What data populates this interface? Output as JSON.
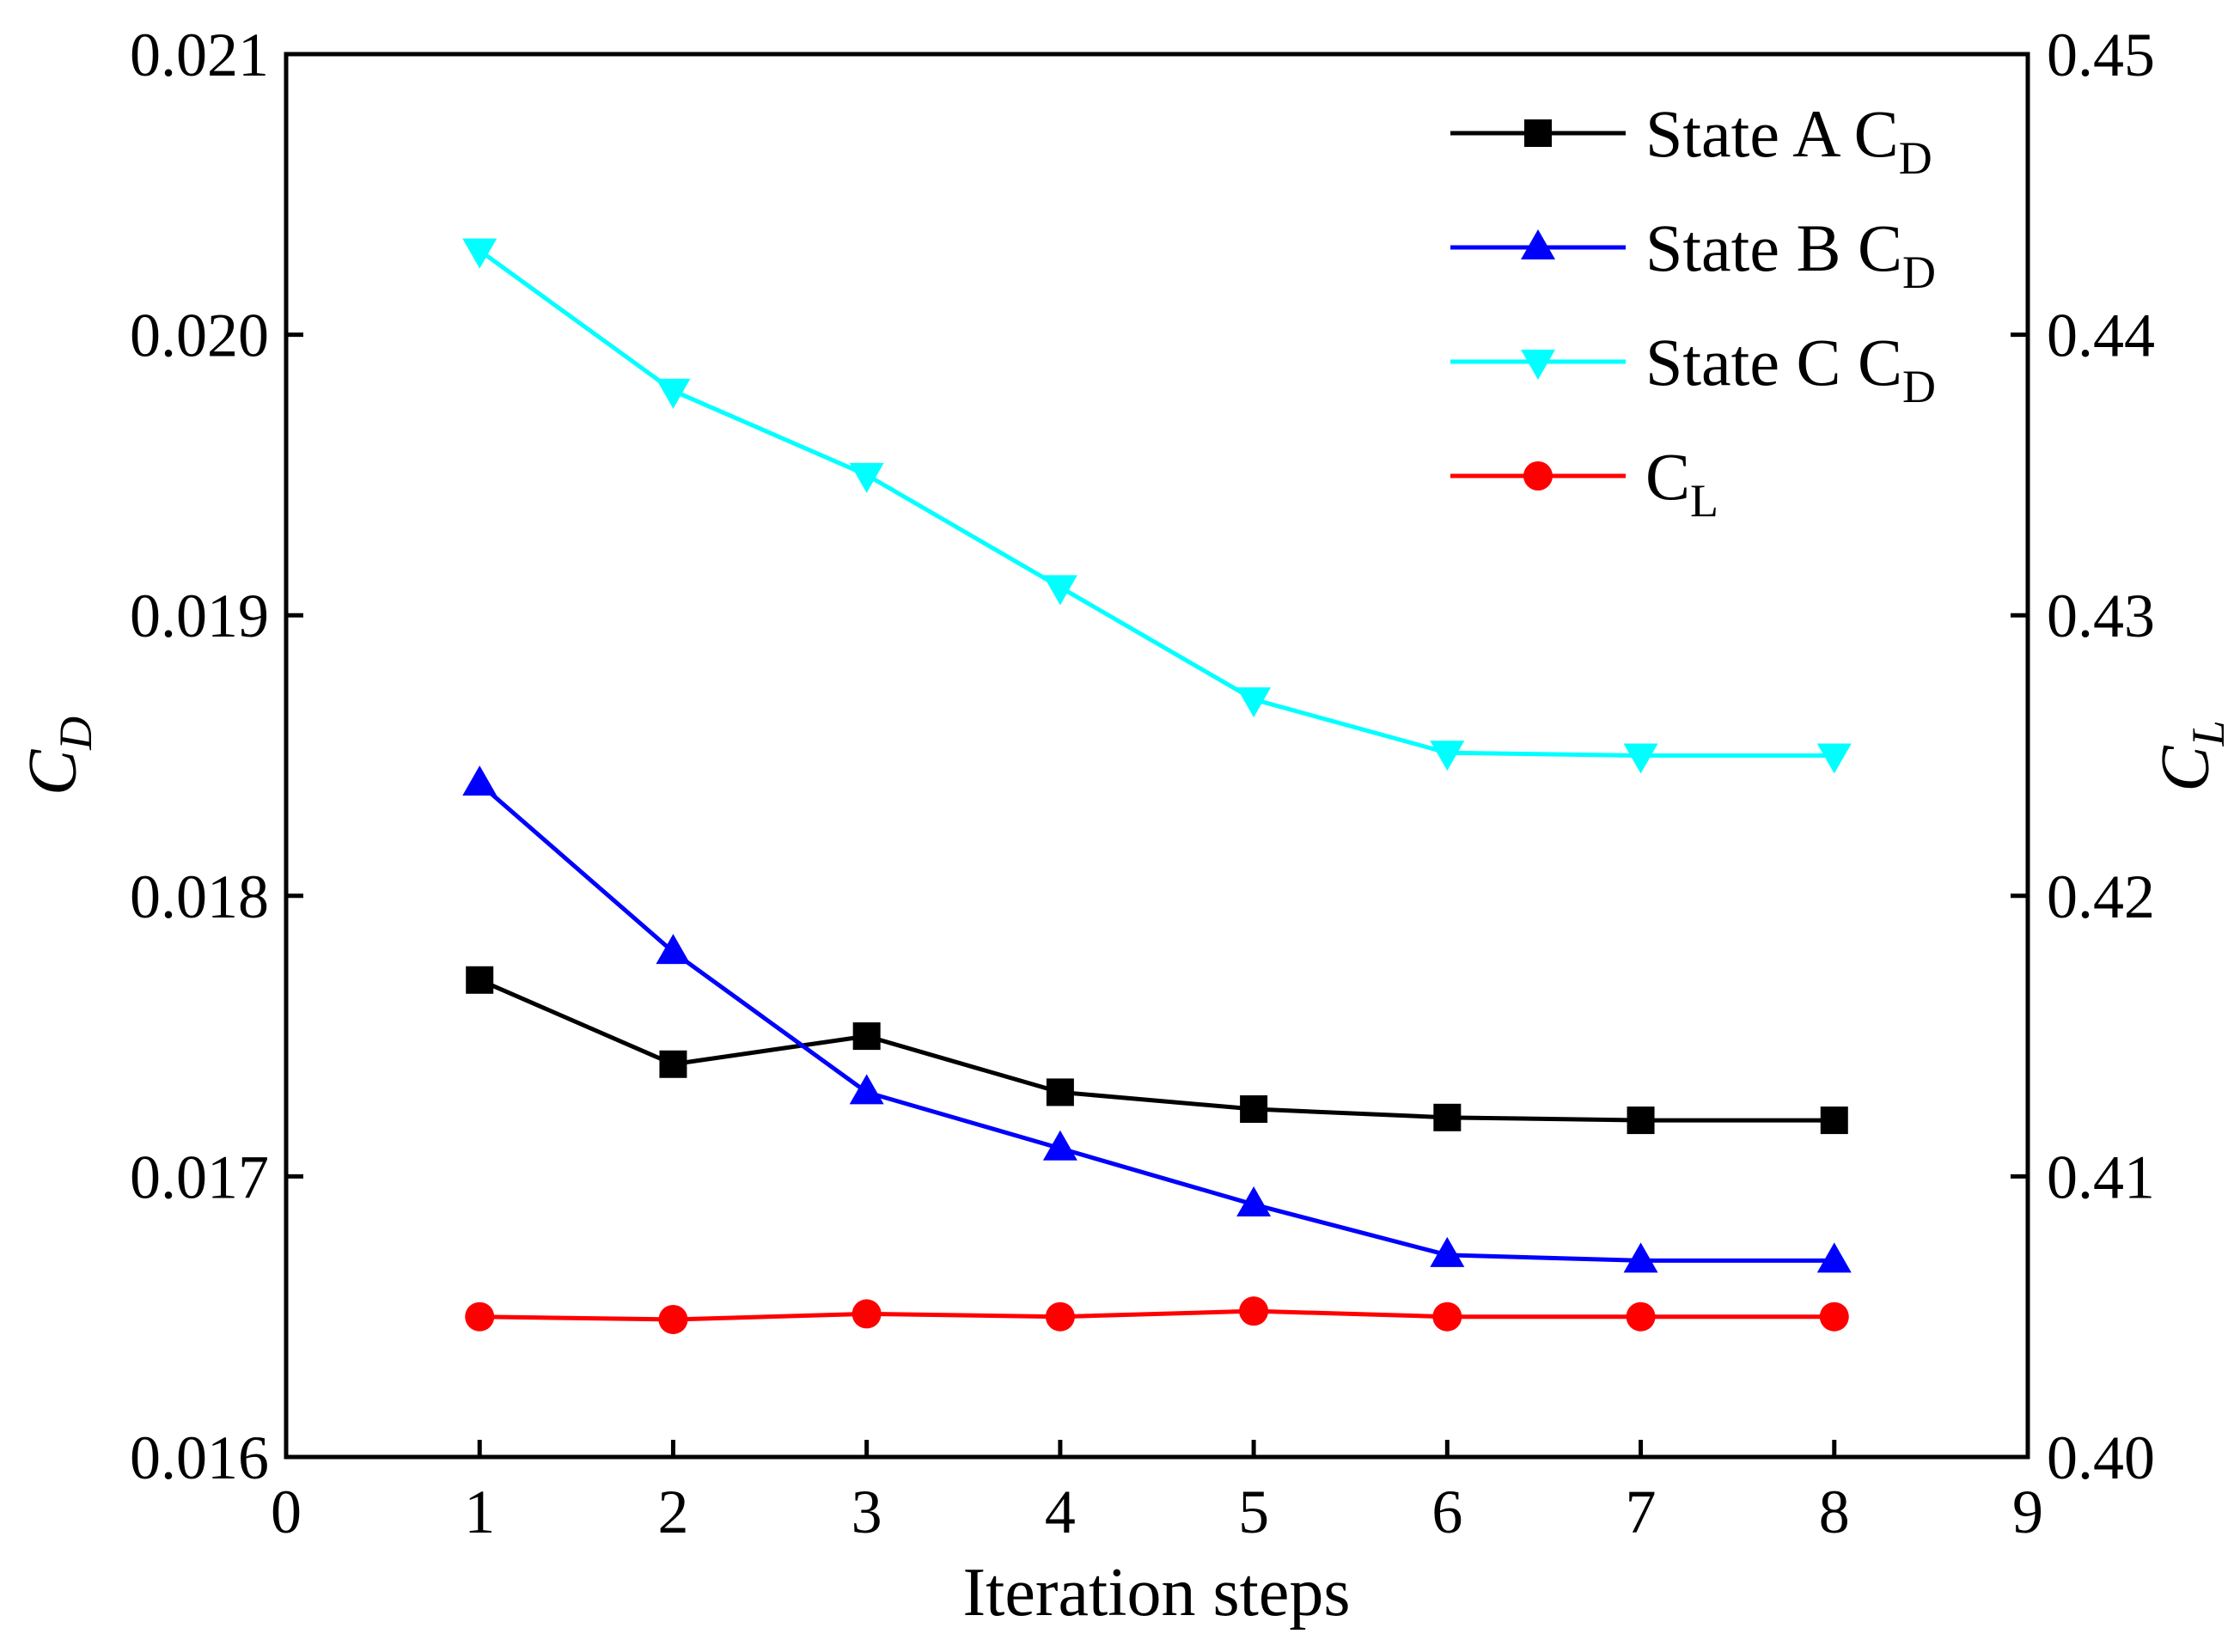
{
  "chart_data": {
    "type": "line",
    "x_axis": {
      "label": "Iteration steps",
      "range": [
        0,
        9
      ],
      "ticks": [
        0,
        1,
        2,
        3,
        4,
        5,
        6,
        7,
        8,
        9
      ],
      "tick_labels": [
        "0",
        "1",
        "2",
        "3",
        "4",
        "5",
        "6",
        "7",
        "8",
        "9"
      ]
    },
    "y_axis_left": {
      "label_main": "C",
      "label_sub": "D",
      "range": [
        0.016,
        0.021
      ],
      "ticks": [
        0.016,
        0.017,
        0.018,
        0.019,
        0.02,
        0.021
      ],
      "tick_labels": [
        "0.016",
        "0.017",
        "0.018",
        "0.019",
        "0.020",
        "0.021"
      ]
    },
    "y_axis_right": {
      "label_main": "C",
      "label_sub": "L",
      "range": [
        0.4,
        0.45
      ],
      "ticks": [
        0.4,
        0.41,
        0.42,
        0.43,
        0.44,
        0.45
      ],
      "tick_labels": [
        "0.40",
        "0.41",
        "0.42",
        "0.43",
        "0.44",
        "0.45"
      ]
    },
    "legend_position": "top-right",
    "x": [
      1,
      2,
      3,
      4,
      5,
      6,
      7,
      8
    ],
    "series": [
      {
        "name_main": "State A C",
        "name_sub": "D",
        "axis": "left",
        "color": "#000000",
        "marker": "square",
        "values": [
          0.0177,
          0.0174,
          0.0175,
          0.0173,
          0.01724,
          0.01721,
          0.0172,
          0.0172
        ]
      },
      {
        "name_main": "State B C",
        "name_sub": "D",
        "axis": "left",
        "color": "#0000ff",
        "marker": "triangle-up",
        "values": [
          0.0184,
          0.0178,
          0.0173,
          0.0171,
          0.0169,
          0.01672,
          0.0167,
          0.0167
        ]
      },
      {
        "name_main": "State C C",
        "name_sub": "D",
        "axis": "left",
        "color": "#00ffff",
        "marker": "triangle-down",
        "values": [
          0.0203,
          0.0198,
          0.0195,
          0.0191,
          0.0187,
          0.01851,
          0.0185,
          0.0185
        ]
      },
      {
        "name_main": "C",
        "name_sub": "L",
        "axis": "right",
        "color": "#ff0000",
        "marker": "circle",
        "values": [
          0.405,
          0.4049,
          0.4051,
          0.405,
          0.4052,
          0.405,
          0.405,
          0.405
        ]
      }
    ]
  }
}
